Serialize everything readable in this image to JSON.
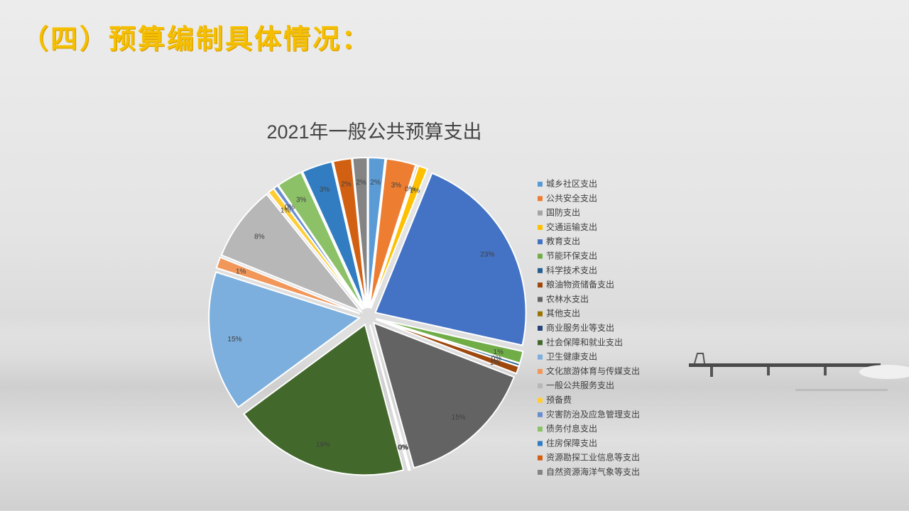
{
  "slide": {
    "heading": "（四）预算编制具体情况："
  },
  "chart_data": {
    "type": "pie",
    "title": "2021年一般公共预算支出",
    "legend_position": "right",
    "slices": [
      {
        "name": "城乡社区支出",
        "label": "2%",
        "value": 1.8,
        "color": "#5b9bd5"
      },
      {
        "name": "公共安全支出",
        "label": "3%",
        "value": 3.2,
        "color": "#ed7d31"
      },
      {
        "name": "国防支出",
        "label": "0%",
        "value": 0.2,
        "color": "#a5a5a5"
      },
      {
        "name": "交通运输支出",
        "label": "1%",
        "value": 1.0,
        "color": "#ffc000"
      },
      {
        "name": "教育支出",
        "label": "23%",
        "value": 22.6,
        "color": "#4472c4"
      },
      {
        "name": "节能环保支出",
        "label": "1%",
        "value": 1.3,
        "color": "#70ad47"
      },
      {
        "name": "科学技术支出",
        "label": "0%",
        "value": 0.3,
        "color": "#255e91"
      },
      {
        "name": "粮油物资储备支出",
        "label": "1%",
        "value": 0.8,
        "color": "#9e480e"
      },
      {
        "name": "农林水支出",
        "label": "15%",
        "value": 15.0,
        "color": "#636363"
      },
      {
        "name": "其他支出",
        "label": "0%",
        "value": 0.1,
        "color": "#997300"
      },
      {
        "name": "商业服务业等支出",
        "label": "0%",
        "value": 0.1,
        "color": "#264478"
      },
      {
        "name": "社会保障和就业支出",
        "label": "19%",
        "value": 19.2,
        "color": "#43682b"
      },
      {
        "name": "卫生健康支出",
        "label": "15%",
        "value": 15.2,
        "color": "#7cafdd"
      },
      {
        "name": "文化旅游体育与传媒支出",
        "label": "1%",
        "value": 1.2,
        "color": "#f1975a"
      },
      {
        "name": "一般公共服务支出",
        "label": "8%",
        "value": 8.2,
        "color": "#b7b7b7"
      },
      {
        "name": "预备费",
        "label": "1%",
        "value": 0.7,
        "color": "#ffcd33"
      },
      {
        "name": "灾害防治及应急管理支出",
        "label": "0%",
        "value": 0.5,
        "color": "#698ed0"
      },
      {
        "name": "债务付息支出",
        "label": "3%",
        "value": 2.8,
        "color": "#8cc168"
      },
      {
        "name": "住房保障支出",
        "label": "3%",
        "value": 3.3,
        "color": "#327dc2"
      },
      {
        "name": "资源勘探工业信息等支出",
        "label": "2%",
        "value": 2.0,
        "color": "#d26012"
      },
      {
        "name": "自然资源海洋气象等支出",
        "label": "2%",
        "value": 1.6,
        "color": "#848484"
      }
    ]
  }
}
